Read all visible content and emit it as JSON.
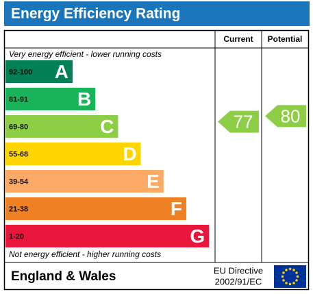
{
  "title": "Energy Efficiency Rating",
  "columns": [
    "Current",
    "Potential"
  ],
  "top_note": "Very energy efficient - lower running costs",
  "bottom_note": "Not energy efficient - higher running costs",
  "bands": [
    {
      "range": "92-100",
      "letter": "A",
      "color": "#008054"
    },
    {
      "range": "81-91",
      "letter": "B",
      "color": "#19b459"
    },
    {
      "range": "69-80",
      "letter": "C",
      "color": "#8dce46"
    },
    {
      "range": "55-68",
      "letter": "D",
      "color": "#ffd500"
    },
    {
      "range": "39-54",
      "letter": "E",
      "color": "#fcaa65"
    },
    {
      "range": "21-38",
      "letter": "F",
      "color": "#ef8023"
    },
    {
      "range": "1-20",
      "letter": "G",
      "color": "#e9153b"
    }
  ],
  "current": 77,
  "potential": 80,
  "footer": {
    "region": "England & Wales",
    "directive": [
      "EU Directive",
      "2002/91/EC"
    ]
  }
}
